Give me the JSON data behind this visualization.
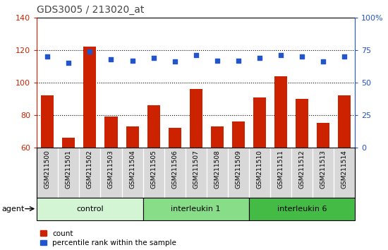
{
  "title": "GDS3005 / 213020_at",
  "samples": [
    "GSM211500",
    "GSM211501",
    "GSM211502",
    "GSM211503",
    "GSM211504",
    "GSM211505",
    "GSM211506",
    "GSM211507",
    "GSM211508",
    "GSM211509",
    "GSM211510",
    "GSM211511",
    "GSM211512",
    "GSM211513",
    "GSM211514"
  ],
  "counts": [
    92,
    66,
    122,
    79,
    73,
    86,
    72,
    96,
    73,
    76,
    91,
    104,
    90,
    75,
    92
  ],
  "percentiles": [
    70,
    65,
    74,
    68,
    67,
    69,
    66,
    71,
    67,
    67,
    69,
    71,
    70,
    66,
    70
  ],
  "groups": [
    {
      "label": "control",
      "start": 0,
      "end": 4,
      "color": "#d4f5d4"
    },
    {
      "label": "interleukin 1",
      "start": 5,
      "end": 9,
      "color": "#88dd88"
    },
    {
      "label": "interleukin 6",
      "start": 10,
      "end": 14,
      "color": "#44bb44"
    }
  ],
  "left_ylim": [
    60,
    140
  ],
  "left_yticks": [
    60,
    80,
    100,
    120,
    140
  ],
  "right_ylim": [
    0,
    100
  ],
  "right_yticks": [
    0,
    25,
    50,
    75,
    100
  ],
  "bar_color": "#cc2200",
  "dot_color": "#2255cc",
  "plot_bg": "#ffffff",
  "xtick_bg": "#d8d8d8",
  "left_axis_color": "#cc2200",
  "right_axis_color": "#2255cc",
  "title_color": "#444444",
  "grid_color": "#000000"
}
